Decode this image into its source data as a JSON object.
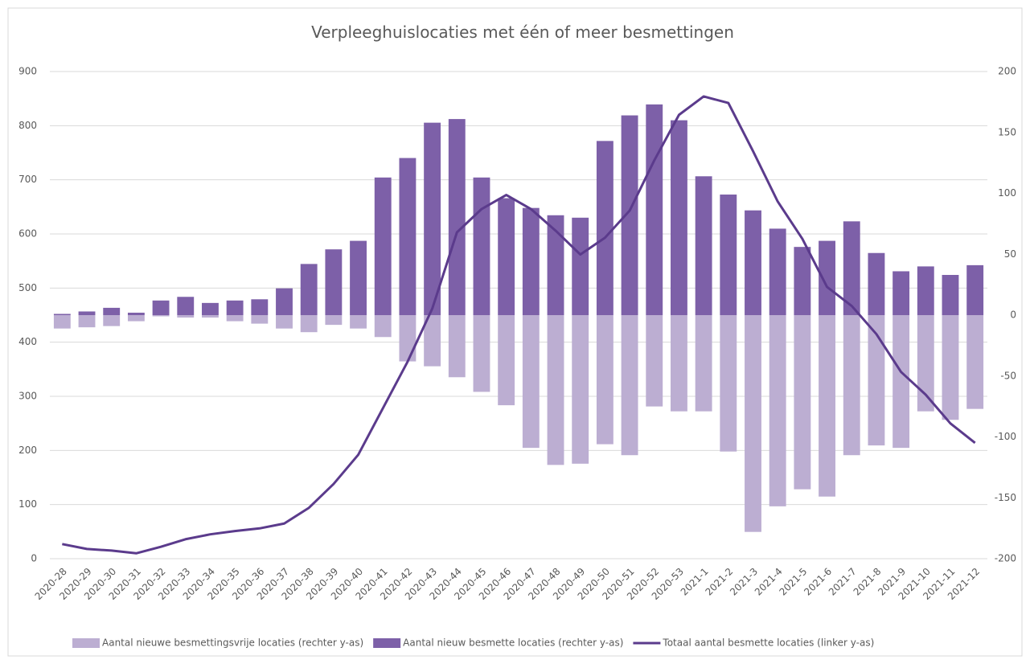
{
  "chart_data": {
    "type": "bar-line",
    "title": "Verpleeghuislocaties met één of meer besmettingen",
    "categories": [
      "2020-28",
      "2020-29",
      "2020-30",
      "2020-31",
      "2020-32",
      "2020-33",
      "2020-34",
      "2020-35",
      "2020-36",
      "2020-37",
      "2020-38",
      "2020-39",
      "2020-40",
      "2020-41",
      "2020-42",
      "2020-43",
      "2020-44",
      "2020-45",
      "2020-46",
      "2020-47",
      "2020-48",
      "2020-49",
      "2020-50",
      "2020-51",
      "2020-52",
      "2020-53",
      "2021-1",
      "2021-2",
      "2021-3",
      "2021-4",
      "2021-5",
      "2021-6",
      "2021-7",
      "2021-8",
      "2021-9",
      "2021-10",
      "2021-11",
      "2021-12"
    ],
    "series": [
      {
        "name": "Aantal nieuwe besmettingsvrije locaties (rechter y-as)",
        "type": "bar",
        "axis": "y2",
        "color": "#bcaed2",
        "values": [
          -11,
          -10,
          -9,
          -5,
          -1,
          -2,
          -2,
          -5,
          -7,
          -11,
          -14,
          -8,
          -11,
          -18,
          -38,
          -42,
          -51,
          -63,
          -74,
          -109,
          -123,
          -122,
          -106,
          -115,
          -75,
          -79,
          -79,
          -112,
          -178,
          -157,
          -143,
          -149,
          -115,
          -107,
          -109,
          -79,
          -86,
          -77
        ]
      },
      {
        "name": "Aantal nieuw besmette locaties (rechter y-as)",
        "type": "bar",
        "axis": "y2",
        "color": "#7d60a8",
        "values": [
          1,
          3,
          6,
          2,
          12,
          15,
          10,
          12,
          13,
          22,
          42,
          54,
          61,
          113,
          129,
          158,
          161,
          113,
          96,
          88,
          82,
          80,
          143,
          164,
          173,
          160,
          114,
          99,
          86,
          71,
          56,
          61,
          77,
          51,
          36,
          40,
          33,
          41
        ]
      },
      {
        "name": "Totaal aantal besmette locaties (linker y-as)",
        "type": "line",
        "color": "#5b3b8c",
        "values": [
          27,
          18,
          15,
          10,
          22,
          36,
          45,
          51,
          56,
          65,
          94,
          138,
          192,
          278,
          364,
          462,
          603,
          646,
          672,
          646,
          606,
          562,
          593,
          643,
          736,
          820,
          854,
          842,
          753,
          660,
          591,
          502,
          467,
          415,
          345,
          303,
          250,
          214
        ]
      }
    ],
    "ylim": [
      0,
      900
    ],
    "yticks": [
      0,
      100,
      200,
      300,
      400,
      500,
      600,
      700,
      800,
      900
    ],
    "y2lim": [
      -200,
      200
    ],
    "y2ticks": [
      -200,
      -150,
      -100,
      -50,
      0,
      50,
      100,
      150,
      200
    ],
    "grid": true,
    "legend": "bottom"
  }
}
